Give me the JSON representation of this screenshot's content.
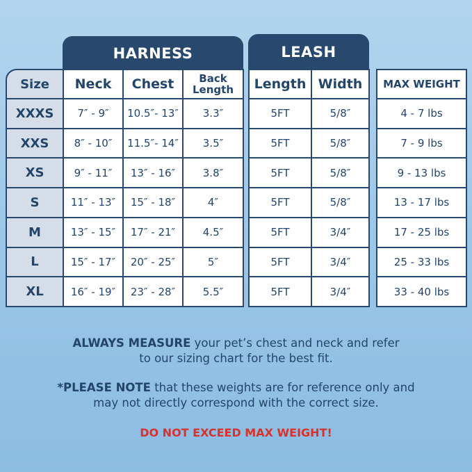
{
  "harness": {
    "title": "HARNESS",
    "headers": [
      "Neck",
      "Chest",
      "Back Length"
    ]
  },
  "leash": {
    "title": "LEASH",
    "headers": [
      "Length",
      "Width"
    ]
  },
  "size_header": "Size",
  "weight_header": "MAX WEIGHT",
  "rows": [
    {
      "size": "XXXS",
      "neck": "7″ - 9″",
      "chest": "10.5″- 13″",
      "back": "3.3″",
      "length": "5FT",
      "width": "5/8″",
      "weight": "4 - 7 lbs"
    },
    {
      "size": "XXS",
      "neck": "8″ - 10″",
      "chest": "11.5″- 14″",
      "back": "3.5″",
      "length": "5FT",
      "width": "5/8″",
      "weight": "7 - 9 lbs"
    },
    {
      "size": "XS",
      "neck": "9″ - 11″",
      "chest": "13″ - 16″",
      "back": "3.8″",
      "length": "5FT",
      "width": "5/8″",
      "weight": "9 - 13 lbs"
    },
    {
      "size": "S",
      "neck": "11″ - 13″",
      "chest": "15″ - 18″",
      "back": "4″",
      "length": "5FT",
      "width": "5/8″",
      "weight": "13 - 17 lbs"
    },
    {
      "size": "M",
      "neck": "13″ - 15″",
      "chest": "17″ - 21″",
      "back": "4.5″",
      "length": "5FT",
      "width": "3/4″",
      "weight": "17 - 25 lbs"
    },
    {
      "size": "L",
      "neck": "15″ - 17″",
      "chest": "20″ - 25″",
      "back": "5″",
      "length": "5FT",
      "width": "3/4″",
      "weight": "25 - 33 lbs"
    },
    {
      "size": "XL",
      "neck": "16″ - 19″",
      "chest": "23″ - 28″",
      "back": "5.5″",
      "length": "5FT",
      "width": "3/4″",
      "weight": "33 - 40 lbs"
    }
  ],
  "notes": {
    "measure_bold": "ALWAYS MEASURE",
    "measure_text": " your pet’s chest and neck and refer to our sizing chart for the best fit.",
    "please_bold": "*PLEASE NOTE",
    "please_text": " that these weights are for reference only and may not directly correspond with the correct size.",
    "warning": "DO NOT EXCEED MAX WEIGHT!"
  },
  "colors": {
    "navy": "#28486d",
    "warning": "#d8322c",
    "size_bg": "#d5dee8"
  }
}
